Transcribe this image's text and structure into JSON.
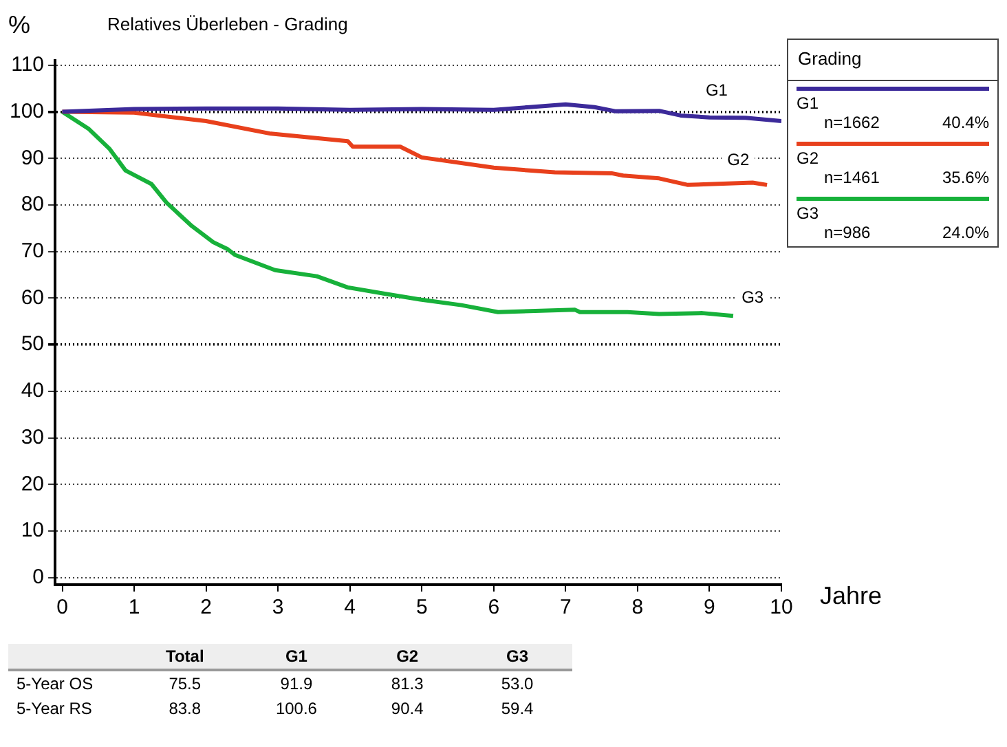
{
  "chart_data": [
    {
      "type": "line",
      "title": "Relatives Überleben - Grading",
      "xlabel": "Jahre",
      "ylabel": "%",
      "legend_title": "Grading",
      "legend": "top right",
      "grid": "y",
      "marker": "none",
      "line_style": "solid",
      "xlim": [
        -0.1,
        10
      ],
      "xticks": [
        0,
        1,
        2,
        3,
        4,
        5,
        6,
        7,
        8,
        9,
        10
      ],
      "ylim": [
        -1.5,
        111
      ],
      "yticks": [
        0,
        10,
        20,
        30,
        40,
        50,
        60,
        70,
        80,
        90,
        100,
        110
      ],
      "annotations": [
        "n=1662",
        "40.4%",
        "n=1461",
        "35.6%",
        "n=986",
        "24.0%",
        "Total",
        "G1",
        "G2",
        "G3",
        "5-Year OS",
        "75.5",
        "91.9",
        "81.3",
        "53.0",
        "5-Year RS",
        "83.8",
        "100.6",
        "90.4",
        "59.4",
        {
          "text": "G1",
          "x": 9.1,
          "y": 104.5
        },
        {
          "text": "G2",
          "x": 9.4,
          "y": 89.5
        },
        {
          "text": "G3",
          "x": 9.6,
          "y": 60
        }
      ],
      "series": [
        {
          "name": "G1",
          "color": "#3c2a9a",
          "x": [
            0,
            1,
            2,
            3,
            4,
            5,
            6,
            6.5,
            7,
            7.4,
            7.7,
            8.3,
            8.6,
            9,
            9.5,
            10
          ],
          "values": [
            100,
            100.6,
            100.7,
            100.7,
            100.4,
            100.6,
            100.4,
            101,
            101.6,
            101,
            100.1,
            100.2,
            99.2,
            98.8,
            98.7,
            98
          ]
        },
        {
          "name": "G2",
          "color": "#e8401c",
          "x": [
            0,
            1,
            2,
            2.9,
            3.97,
            4.04,
            4.7,
            5,
            6,
            6.85,
            7.64,
            7.8,
            8.3,
            8.7,
            9.6,
            9.8
          ],
          "values": [
            100,
            99.8,
            98,
            95.3,
            93.7,
            92.5,
            92.5,
            90.2,
            88,
            87,
            86.8,
            86.3,
            85.7,
            84.3,
            84.8,
            84.3
          ]
        },
        {
          "name": "G3",
          "color": "#17b13a",
          "x": [
            0,
            0.37,
            0.66,
            0.88,
            1.24,
            1.45,
            1.8,
            2.1,
            2.3,
            2.4,
            2.96,
            3.54,
            3.97,
            4.47,
            4.98,
            5.55,
            6.06,
            7.13,
            7.2,
            7.86,
            8.3,
            8.9,
            9.33
          ],
          "values": [
            100,
            96.3,
            92,
            87.4,
            84.5,
            80.5,
            75.5,
            72,
            70.5,
            69.3,
            66,
            64.7,
            62.3,
            61,
            59.7,
            58.5,
            57,
            57.5,
            57,
            57,
            56.6,
            56.8,
            56.2
          ]
        }
      ]
    }
  ]
}
